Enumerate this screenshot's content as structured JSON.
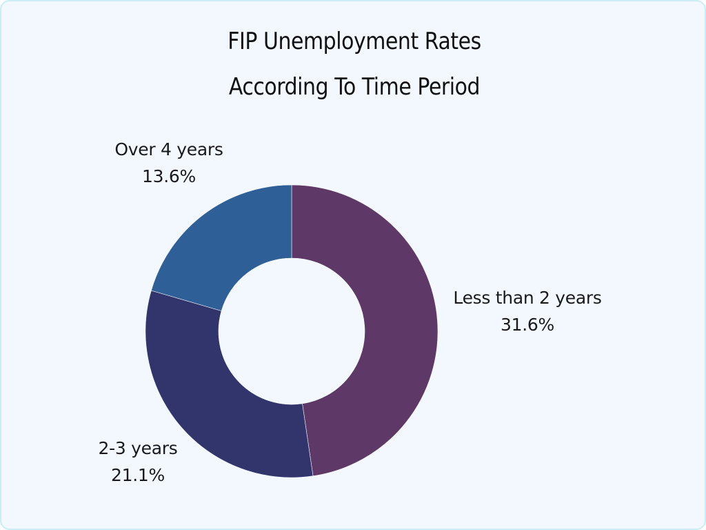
{
  "chart_data": {
    "type": "pie",
    "variant": "donut",
    "title": "FIP Unemployment Rates According To Time Period",
    "title_lines": [
      "FIP Unemployment Rates",
      "According To Time Period"
    ],
    "categories": [
      "Less than 2 years",
      "2-3 years",
      "Over 4 years"
    ],
    "values": [
      31.6,
      21.1,
      13.6
    ],
    "value_labels": [
      "31.6%",
      "21.1%",
      "13.6%"
    ],
    "colors": [
      "#5E3866",
      "#31356B",
      "#2E5F96"
    ],
    "start_angle_deg": 0,
    "direction": "clockwise",
    "legend": "none (labels placed outside slices)",
    "slices": [
      {
        "label": "Less than 2 years",
        "value": 31.6,
        "value_label": "31.6%",
        "color": "#5E3866"
      },
      {
        "label": "2-3 years",
        "value": 21.1,
        "value_label": "21.1%",
        "color": "#31356B"
      },
      {
        "label": "Over 4 years",
        "value": 13.6,
        "value_label": "13.6%",
        "color": "#2E5F96"
      }
    ]
  },
  "colors": {
    "background": "#F3F8FE",
    "border": "#C9EEF5",
    "text": "#111111"
  }
}
